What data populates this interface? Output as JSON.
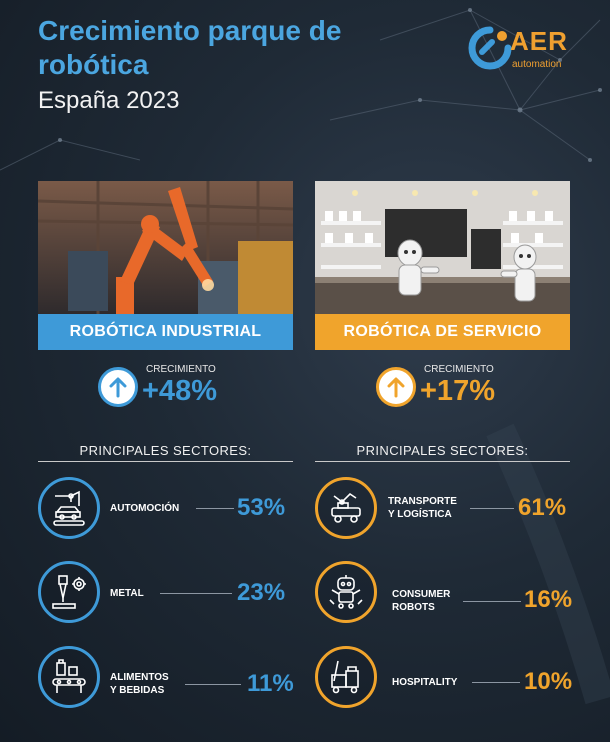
{
  "header": {
    "title": "Crecimiento parque de robótica",
    "subtitle": "España 2023"
  },
  "logo": {
    "brand": "AER",
    "tagline": "automation",
    "accent_color": "#f0a030",
    "secondary_color": "#3e9ad8"
  },
  "industrial": {
    "banner": "ROBÓTICA INDUSTRIAL",
    "growth_label": "CRECIMIENTO",
    "growth_value": "+48%",
    "sectors_heading": "PRINCIPALES SECTORES:",
    "color": "#3e9ad8",
    "sectors": [
      {
        "label": "AUTOMOCIÓN",
        "value": "53%",
        "icon": "car-assembly-icon"
      },
      {
        "label": "METAL",
        "value": "23%",
        "icon": "metal-drill-icon"
      },
      {
        "label": "ALIMENTOS\nY BEBIDAS",
        "value": "11%",
        "icon": "food-conveyor-icon"
      }
    ]
  },
  "service": {
    "banner": "ROBÓTICA DE SERVICIO",
    "growth_label": "CRECIMIENTO",
    "growth_value": "+17%",
    "sectors_heading": "PRINCIPALES SECTORES:",
    "color": "#f0a42c",
    "sectors": [
      {
        "label": "TRANSPORTE\nY LOGÍSTICA",
        "value": "61%",
        "icon": "transport-robot-icon"
      },
      {
        "label": "CONSUMER\nROBOTS",
        "value": "16%",
        "icon": "consumer-robot-icon"
      },
      {
        "label": "HOSPITALITY",
        "value": "10%",
        "icon": "hospitality-cart-icon"
      }
    ]
  }
}
